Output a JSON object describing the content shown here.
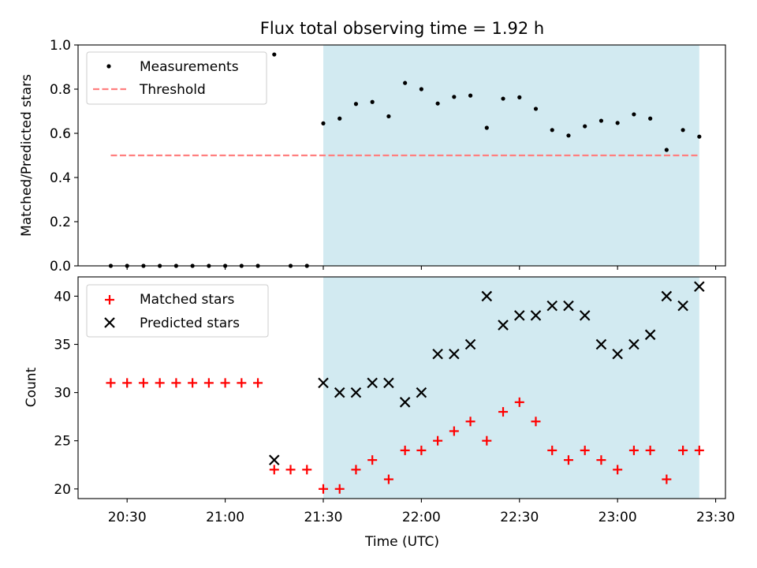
{
  "title": "Flux total observing time = 1.92 h",
  "colors": {
    "shade": "#add8e6",
    "threshold": "#ff7f7f",
    "measurement": "#000000",
    "matched": "#ff0000",
    "predicted": "#000000"
  },
  "chart_data": [
    {
      "type": "scatter",
      "panel": "top",
      "title": "Flux total observing time = 1.92 h",
      "xlabel": "",
      "ylabel": "Matched/Predicted stars",
      "ylim": [
        0.0,
        1.0
      ],
      "yticks": [
        0.0,
        0.2,
        0.4,
        0.6,
        0.8,
        1.0
      ],
      "ytick_labels": [
        "0.0",
        "0.2",
        "0.4",
        "0.6",
        "0.8",
        "1.0"
      ],
      "xlim": [
        "20:15",
        "23:33"
      ],
      "grid": false,
      "legend_location": "upper left",
      "legend": [
        "Measurements",
        "Threshold"
      ],
      "shaded_interval": [
        "21:30",
        "23:25"
      ],
      "series": [
        {
          "name": "Measurements",
          "marker": "dot",
          "x": [
            "20:25",
            "20:30",
            "20:35",
            "20:40",
            "20:45",
            "20:50",
            "20:55",
            "21:00",
            "21:05",
            "21:10",
            "21:15",
            "21:20",
            "21:25",
            "21:30",
            "21:35",
            "21:40",
            "21:45",
            "21:50",
            "21:55",
            "22:00",
            "22:05",
            "22:10",
            "22:15",
            "22:20",
            "22:25",
            "22:30",
            "22:35",
            "22:40",
            "22:45",
            "22:50",
            "22:55",
            "23:00",
            "23:05",
            "23:10",
            "23:15",
            "23:20",
            "23:25"
          ],
          "y": [
            0.0,
            0.0,
            0.0,
            0.0,
            0.0,
            0.0,
            0.0,
            0.0,
            0.0,
            0.0,
            0.957,
            0.0,
            0.0,
            0.645,
            0.667,
            0.733,
            0.742,
            0.677,
            0.828,
            0.8,
            0.735,
            0.765,
            0.771,
            0.625,
            0.757,
            0.763,
            0.711,
            0.615,
            0.59,
            0.632,
            0.657,
            0.647,
            0.686,
            0.667,
            0.525,
            0.615,
            0.585
          ]
        },
        {
          "name": "Threshold",
          "style": "dashed",
          "x": [
            "20:25",
            "23:25"
          ],
          "y": [
            0.5,
            0.5
          ]
        }
      ]
    },
    {
      "type": "scatter",
      "panel": "bottom",
      "xlabel": "Time (UTC)",
      "ylabel": "Count",
      "ylim": [
        19,
        42
      ],
      "yticks": [
        20,
        25,
        30,
        35,
        40
      ],
      "ytick_labels": [
        "20",
        "25",
        "30",
        "35",
        "40"
      ],
      "xlim": [
        "20:15",
        "23:33"
      ],
      "xticks": [
        "20:30",
        "21:00",
        "21:30",
        "22:00",
        "22:30",
        "23:00",
        "23:30"
      ],
      "xtick_labels": [
        "20:30",
        "21:00",
        "21:30",
        "22:00",
        "22:30",
        "23:00",
        "23:30"
      ],
      "grid": false,
      "legend_location": "upper left",
      "legend": [
        "Matched stars",
        "Predicted stars"
      ],
      "shaded_interval": [
        "21:30",
        "23:25"
      ],
      "series": [
        {
          "name": "Matched stars",
          "marker": "plus",
          "x": [
            "20:25",
            "20:30",
            "20:35",
            "20:40",
            "20:45",
            "20:50",
            "20:55",
            "21:00",
            "21:05",
            "21:10",
            "21:15",
            "21:20",
            "21:25",
            "21:30",
            "21:35",
            "21:40",
            "21:45",
            "21:50",
            "21:55",
            "22:00",
            "22:05",
            "22:10",
            "22:15",
            "22:20",
            "22:25",
            "22:30",
            "22:35",
            "22:40",
            "22:45",
            "22:50",
            "22:55",
            "23:00",
            "23:05",
            "23:10",
            "23:15",
            "23:20",
            "23:25"
          ],
          "y": [
            31,
            31,
            31,
            31,
            31,
            31,
            31,
            31,
            31,
            31,
            22,
            22,
            22,
            20,
            20,
            22,
            23,
            21,
            24,
            24,
            25,
            26,
            27,
            25,
            28,
            29,
            27,
            24,
            23,
            24,
            23,
            22,
            24,
            24,
            21,
            24,
            24
          ]
        },
        {
          "name": "Predicted stars",
          "marker": "x",
          "x": [
            "21:15",
            "21:30",
            "21:35",
            "21:40",
            "21:45",
            "21:50",
            "21:55",
            "22:00",
            "22:05",
            "22:10",
            "22:15",
            "22:20",
            "22:25",
            "22:30",
            "22:35",
            "22:40",
            "22:45",
            "22:50",
            "22:55",
            "23:00",
            "23:05",
            "23:10",
            "23:15",
            "23:20",
            "23:25"
          ],
          "y": [
            23,
            31,
            30,
            30,
            31,
            31,
            29,
            30,
            34,
            34,
            35,
            40,
            37,
            38,
            38,
            39,
            39,
            38,
            35,
            34,
            35,
            36,
            40,
            39,
            41
          ]
        }
      ]
    }
  ]
}
